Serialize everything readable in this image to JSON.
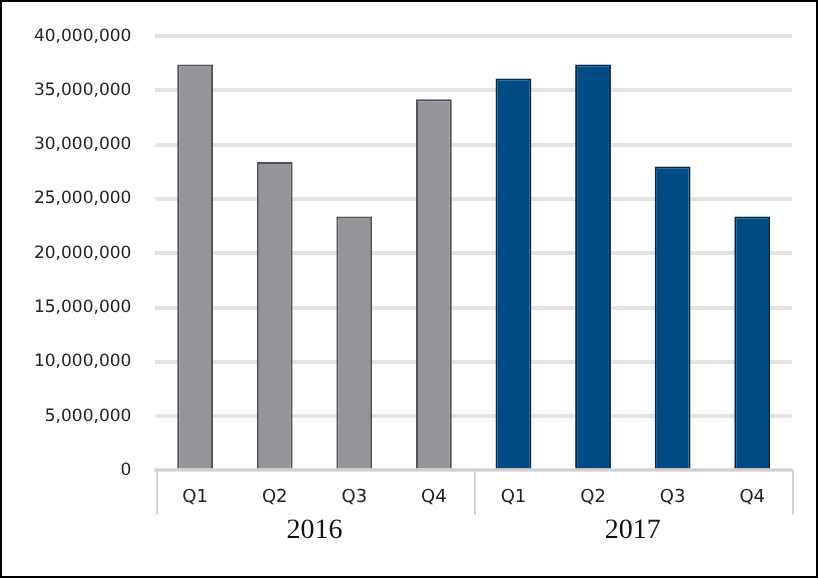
{
  "chart_data": {
    "type": "bar",
    "categories": [
      "Q1",
      "Q2",
      "Q3",
      "Q4",
      "Q1",
      "Q2",
      "Q3",
      "Q4"
    ],
    "series": [
      {
        "name": "2016",
        "color": "#939598",
        "values": [
          37400000,
          28400000,
          23400000,
          34200000,
          null,
          null,
          null,
          null
        ]
      },
      {
        "name": "2017",
        "color": "#004b84",
        "values": [
          null,
          null,
          null,
          null,
          36100000,
          37400000,
          28000000,
          23400000
        ]
      }
    ],
    "ylim": [
      0,
      40000000
    ],
    "yticks": [
      0,
      {
        "value": 5000000,
        "label": "5,000,000"
      },
      {
        "value": 10000000,
        "label": "10,000,000"
      },
      {
        "value": 15000000,
        "label": "15,000,000"
      },
      {
        "value": 20000000,
        "label": "20,000,000"
      },
      {
        "value": 25000000,
        "label": "25,000,000"
      },
      {
        "value": 30000000,
        "label": "30,000,000"
      },
      {
        "value": 35000000,
        "label": "35,000,000"
      },
      {
        "value": 40000000,
        "label": "40,000,000"
      }
    ],
    "grid": "y",
    "legend": false
  }
}
